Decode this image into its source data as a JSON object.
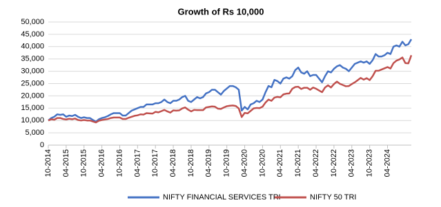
{
  "chart_data": {
    "type": "line",
    "title": "Growth of Rs 10,000",
    "x": [
      "10-2014",
      "11-2014",
      "12-2014",
      "01-2015",
      "02-2015",
      "03-2015",
      "04-2015",
      "05-2015",
      "06-2015",
      "07-2015",
      "08-2015",
      "09-2015",
      "10-2015",
      "11-2015",
      "12-2015",
      "01-2016",
      "02-2016",
      "03-2016",
      "04-2016",
      "05-2016",
      "06-2016",
      "07-2016",
      "08-2016",
      "09-2016",
      "10-2016",
      "11-2016",
      "12-2016",
      "01-2017",
      "02-2017",
      "03-2017",
      "04-2017",
      "05-2017",
      "06-2017",
      "07-2017",
      "08-2017",
      "09-2017",
      "10-2017",
      "11-2017",
      "12-2017",
      "01-2018",
      "02-2018",
      "03-2018",
      "04-2018",
      "05-2018",
      "06-2018",
      "07-2018",
      "08-2018",
      "09-2018",
      "10-2018",
      "11-2018",
      "12-2018",
      "01-2019",
      "02-2019",
      "03-2019",
      "04-2019",
      "05-2019",
      "06-2019",
      "07-2019",
      "08-2019",
      "09-2019",
      "10-2019",
      "11-2019",
      "12-2019",
      "01-2020",
      "02-2020",
      "03-2020",
      "04-2020",
      "05-2020",
      "06-2020",
      "07-2020",
      "08-2020",
      "09-2020",
      "10-2020",
      "11-2020",
      "12-2020",
      "01-2021",
      "02-2021",
      "03-2021",
      "04-2021",
      "05-2021",
      "06-2021",
      "07-2021",
      "08-2021",
      "09-2021",
      "10-2021",
      "11-2021",
      "12-2021",
      "01-2022",
      "02-2022",
      "03-2022",
      "04-2022",
      "05-2022",
      "06-2022",
      "07-2022",
      "08-2022",
      "09-2022",
      "10-2022",
      "11-2022",
      "12-2022",
      "01-2023",
      "02-2023",
      "03-2023",
      "04-2023",
      "05-2023",
      "06-2023",
      "07-2023",
      "08-2023",
      "09-2023",
      "10-2023",
      "11-2023",
      "12-2023",
      "01-2024",
      "02-2024",
      "03-2024",
      "04-2024",
      "05-2024",
      "06-2024",
      "07-2024",
      "08-2024",
      "09-2024",
      "10-2024",
      "11-2024",
      "12-2024"
    ],
    "xticks": [
      "10-2014",
      "04-2015",
      "10-2015",
      "04-2016",
      "10-2016",
      "04-2017",
      "10-2017",
      "04-2018",
      "10-2018",
      "04-2019",
      "10-2019",
      "04-2020",
      "10-2020",
      "04-2021",
      "10-2021",
      "04-2022",
      "10-2022",
      "04-2023",
      "10-2023",
      "04-2024"
    ],
    "series": [
      {
        "name": "NIFTY FINANCIAL SERVICES TRI",
        "color": "#4472c4",
        "values": [
          10000,
          11000,
          11500,
          12500,
          12300,
          12500,
          11500,
          12000,
          11800,
          12300,
          11500,
          11000,
          11300,
          11000,
          11000,
          10200,
          9500,
          10500,
          11000,
          11300,
          11800,
          12500,
          13000,
          13000,
          13000,
          12000,
          12000,
          13000,
          14000,
          14500,
          15000,
          15500,
          15500,
          16500,
          16500,
          16500,
          17000,
          17000,
          17500,
          18500,
          17500,
          17000,
          18000,
          18000,
          18500,
          19500,
          20000,
          18000,
          17500,
          18500,
          19500,
          19000,
          19500,
          21000,
          21500,
          22500,
          22500,
          21500,
          20500,
          22000,
          23000,
          24000,
          24000,
          23500,
          22500,
          14000,
          15500,
          14500,
          16500,
          17000,
          18000,
          17500,
          18500,
          21500,
          24000,
          23500,
          26500,
          26000,
          25000,
          27000,
          27500,
          27000,
          28000,
          30500,
          31500,
          29500,
          29000,
          30000,
          28000,
          28500,
          28500,
          27000,
          25500,
          28000,
          30000,
          29500,
          31000,
          32000,
          32500,
          31500,
          31000,
          30000,
          31500,
          33000,
          33500,
          34000,
          33500,
          34000,
          33000,
          34500,
          37000,
          36000,
          36000,
          36500,
          37500,
          37000,
          40000,
          40500,
          40000,
          42000,
          40500,
          41000,
          43000
        ]
      },
      {
        "name": "NIFTY 50 TRI",
        "color": "#c0504d",
        "values": [
          10000,
          10500,
          10300,
          11000,
          11000,
          10600,
          10400,
          10700,
          10500,
          10800,
          10200,
          10000,
          10200,
          10000,
          10000,
          9600,
          9200,
          9900,
          10200,
          10400,
          10600,
          11000,
          11200,
          11200,
          11200,
          10600,
          10600,
          11100,
          11500,
          11900,
          12100,
          12500,
          12400,
          13000,
          12900,
          12800,
          13500,
          13300,
          13800,
          14300,
          13700,
          13200,
          14100,
          14000,
          14100,
          14900,
          15300,
          14400,
          13700,
          14300,
          14200,
          14200,
          14200,
          15300,
          15500,
          15700,
          15600,
          14800,
          14700,
          15300,
          15800,
          16000,
          16100,
          15900,
          14900,
          11400,
          13100,
          12900,
          13900,
          14900,
          15100,
          15000,
          15600,
          17300,
          18500,
          18000,
          19300,
          19600,
          19400,
          20600,
          20900,
          21000,
          22900,
          23600,
          23700,
          22800,
          23300,
          23300,
          22500,
          23400,
          22900,
          22200,
          21500,
          23400,
          24300,
          23400,
          24800,
          25800,
          24900,
          24400,
          23900,
          24000,
          24800,
          25500,
          26400,
          27300,
          26600,
          27200,
          26400,
          28000,
          30200,
          30200,
          30700,
          31200,
          31700,
          31100,
          33300,
          34300,
          34800,
          35600,
          33300,
          33200,
          36500
        ]
      }
    ],
    "ylim": [
      0,
      50000
    ],
    "yticks": [
      {
        "value": 0,
        "label": "0"
      },
      {
        "value": 5000,
        "label": "5,000"
      },
      {
        "value": 10000,
        "label": "10,000"
      },
      {
        "value": 15000,
        "label": "15,000"
      },
      {
        "value": 20000,
        "label": "20,000"
      },
      {
        "value": 25000,
        "label": "25,000"
      },
      {
        "value": 30000,
        "label": "30,000"
      },
      {
        "value": 35000,
        "label": "35,000"
      },
      {
        "value": 40000,
        "label": "40,000"
      },
      {
        "value": 45000,
        "label": "45,000"
      },
      {
        "value": 50000,
        "label": "50,000"
      }
    ],
    "grid": true,
    "legend": "bottom"
  }
}
